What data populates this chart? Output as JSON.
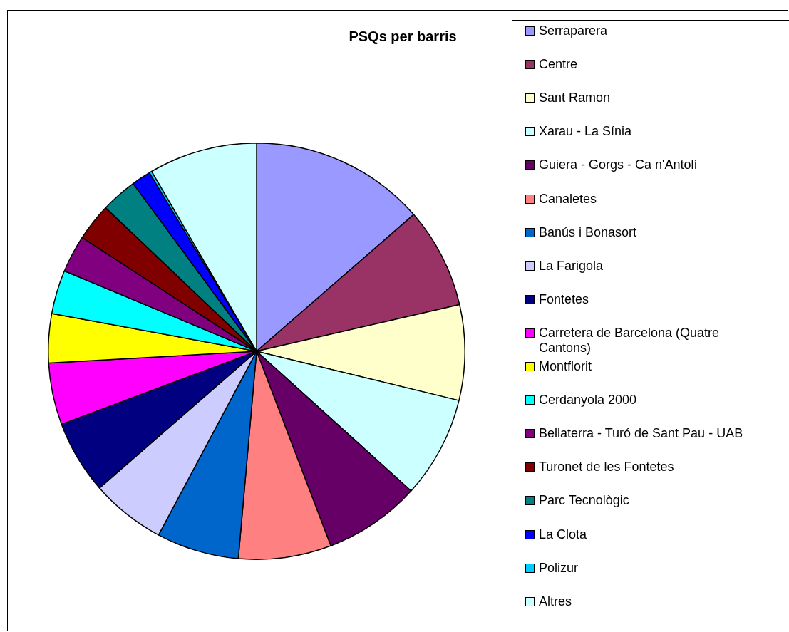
{
  "chart_data": {
    "type": "pie",
    "title": "PSQs per barris",
    "categories": [
      "Serraparera",
      "Centre",
      "Sant Ramon",
      "Xarau - La Sínia",
      "Guiera - Gorgs - Ca n'Antolí",
      "Canaletes",
      "Banús i Bonasort",
      "La Farigola",
      "Fontetes",
      "Carretera de Barcelona (Quatre Cantons)",
      "Montflorit",
      "Cerdanyola 2000",
      "Bellaterra - Turó de Sant Pau - UAB",
      "Turonet de les Fontetes",
      "Parc Tecnològic",
      "La Clota",
      "Polizur",
      "Altres"
    ],
    "values": [
      13.6,
      7.8,
      7.4,
      7.9,
      7.5,
      7.2,
      6.4,
      5.8,
      5.7,
      4.8,
      3.8,
      3.4,
      2.9,
      2.9,
      2.8,
      1.5,
      0.2,
      8.4
    ],
    "colors": [
      "#9999ff",
      "#993366",
      "#ffffcc",
      "#ccffff",
      "#660066",
      "#ff8080",
      "#0066cc",
      "#ccccff",
      "#000080",
      "#ff00ff",
      "#ffff00",
      "#00ffff",
      "#800080",
      "#800000",
      "#008080",
      "#0000ff",
      "#00ccff",
      "#ccffff"
    ],
    "legend": "right"
  }
}
